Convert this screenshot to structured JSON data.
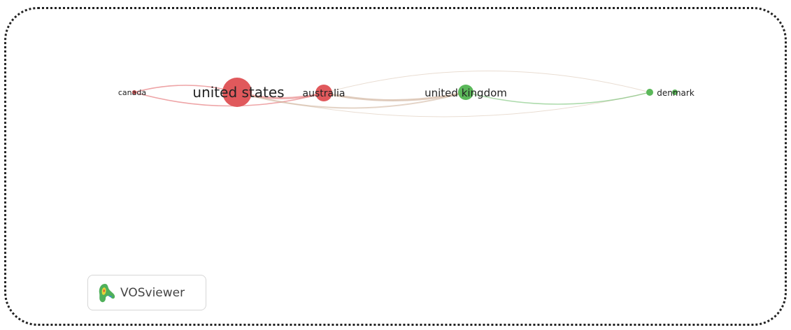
{
  "network": {
    "nodes": [
      {
        "id": "canada",
        "label": "canada",
        "color": "#e0595c"
      },
      {
        "id": "united_states",
        "label": "united states",
        "color": "#e0595c"
      },
      {
        "id": "australia",
        "label": "australia",
        "color": "#e0595c"
      },
      {
        "id": "united_kingdom",
        "label": "united kingdom",
        "color": "#5bb85a"
      },
      {
        "id": "denmark",
        "label": "denmark",
        "color": "#5bb85a"
      }
    ],
    "links": [
      {
        "source": "canada",
        "target": "australia"
      },
      {
        "source": "canada",
        "target": "united_states"
      },
      {
        "source": "united_states",
        "target": "australia"
      },
      {
        "source": "united_states",
        "target": "united_kingdom"
      },
      {
        "source": "united_states",
        "target": "denmark"
      },
      {
        "source": "australia",
        "target": "united_kingdom"
      },
      {
        "source": "australia",
        "target": "denmark"
      },
      {
        "source": "united_kingdom",
        "target": "denmark"
      }
    ]
  },
  "logo": {
    "text": "VOSviewer",
    "icon": "vosviewer-logo-icon"
  },
  "colors": {
    "cluster_red": "#e0595c",
    "cluster_green": "#5bb85a",
    "frame_border": "#222222"
  }
}
